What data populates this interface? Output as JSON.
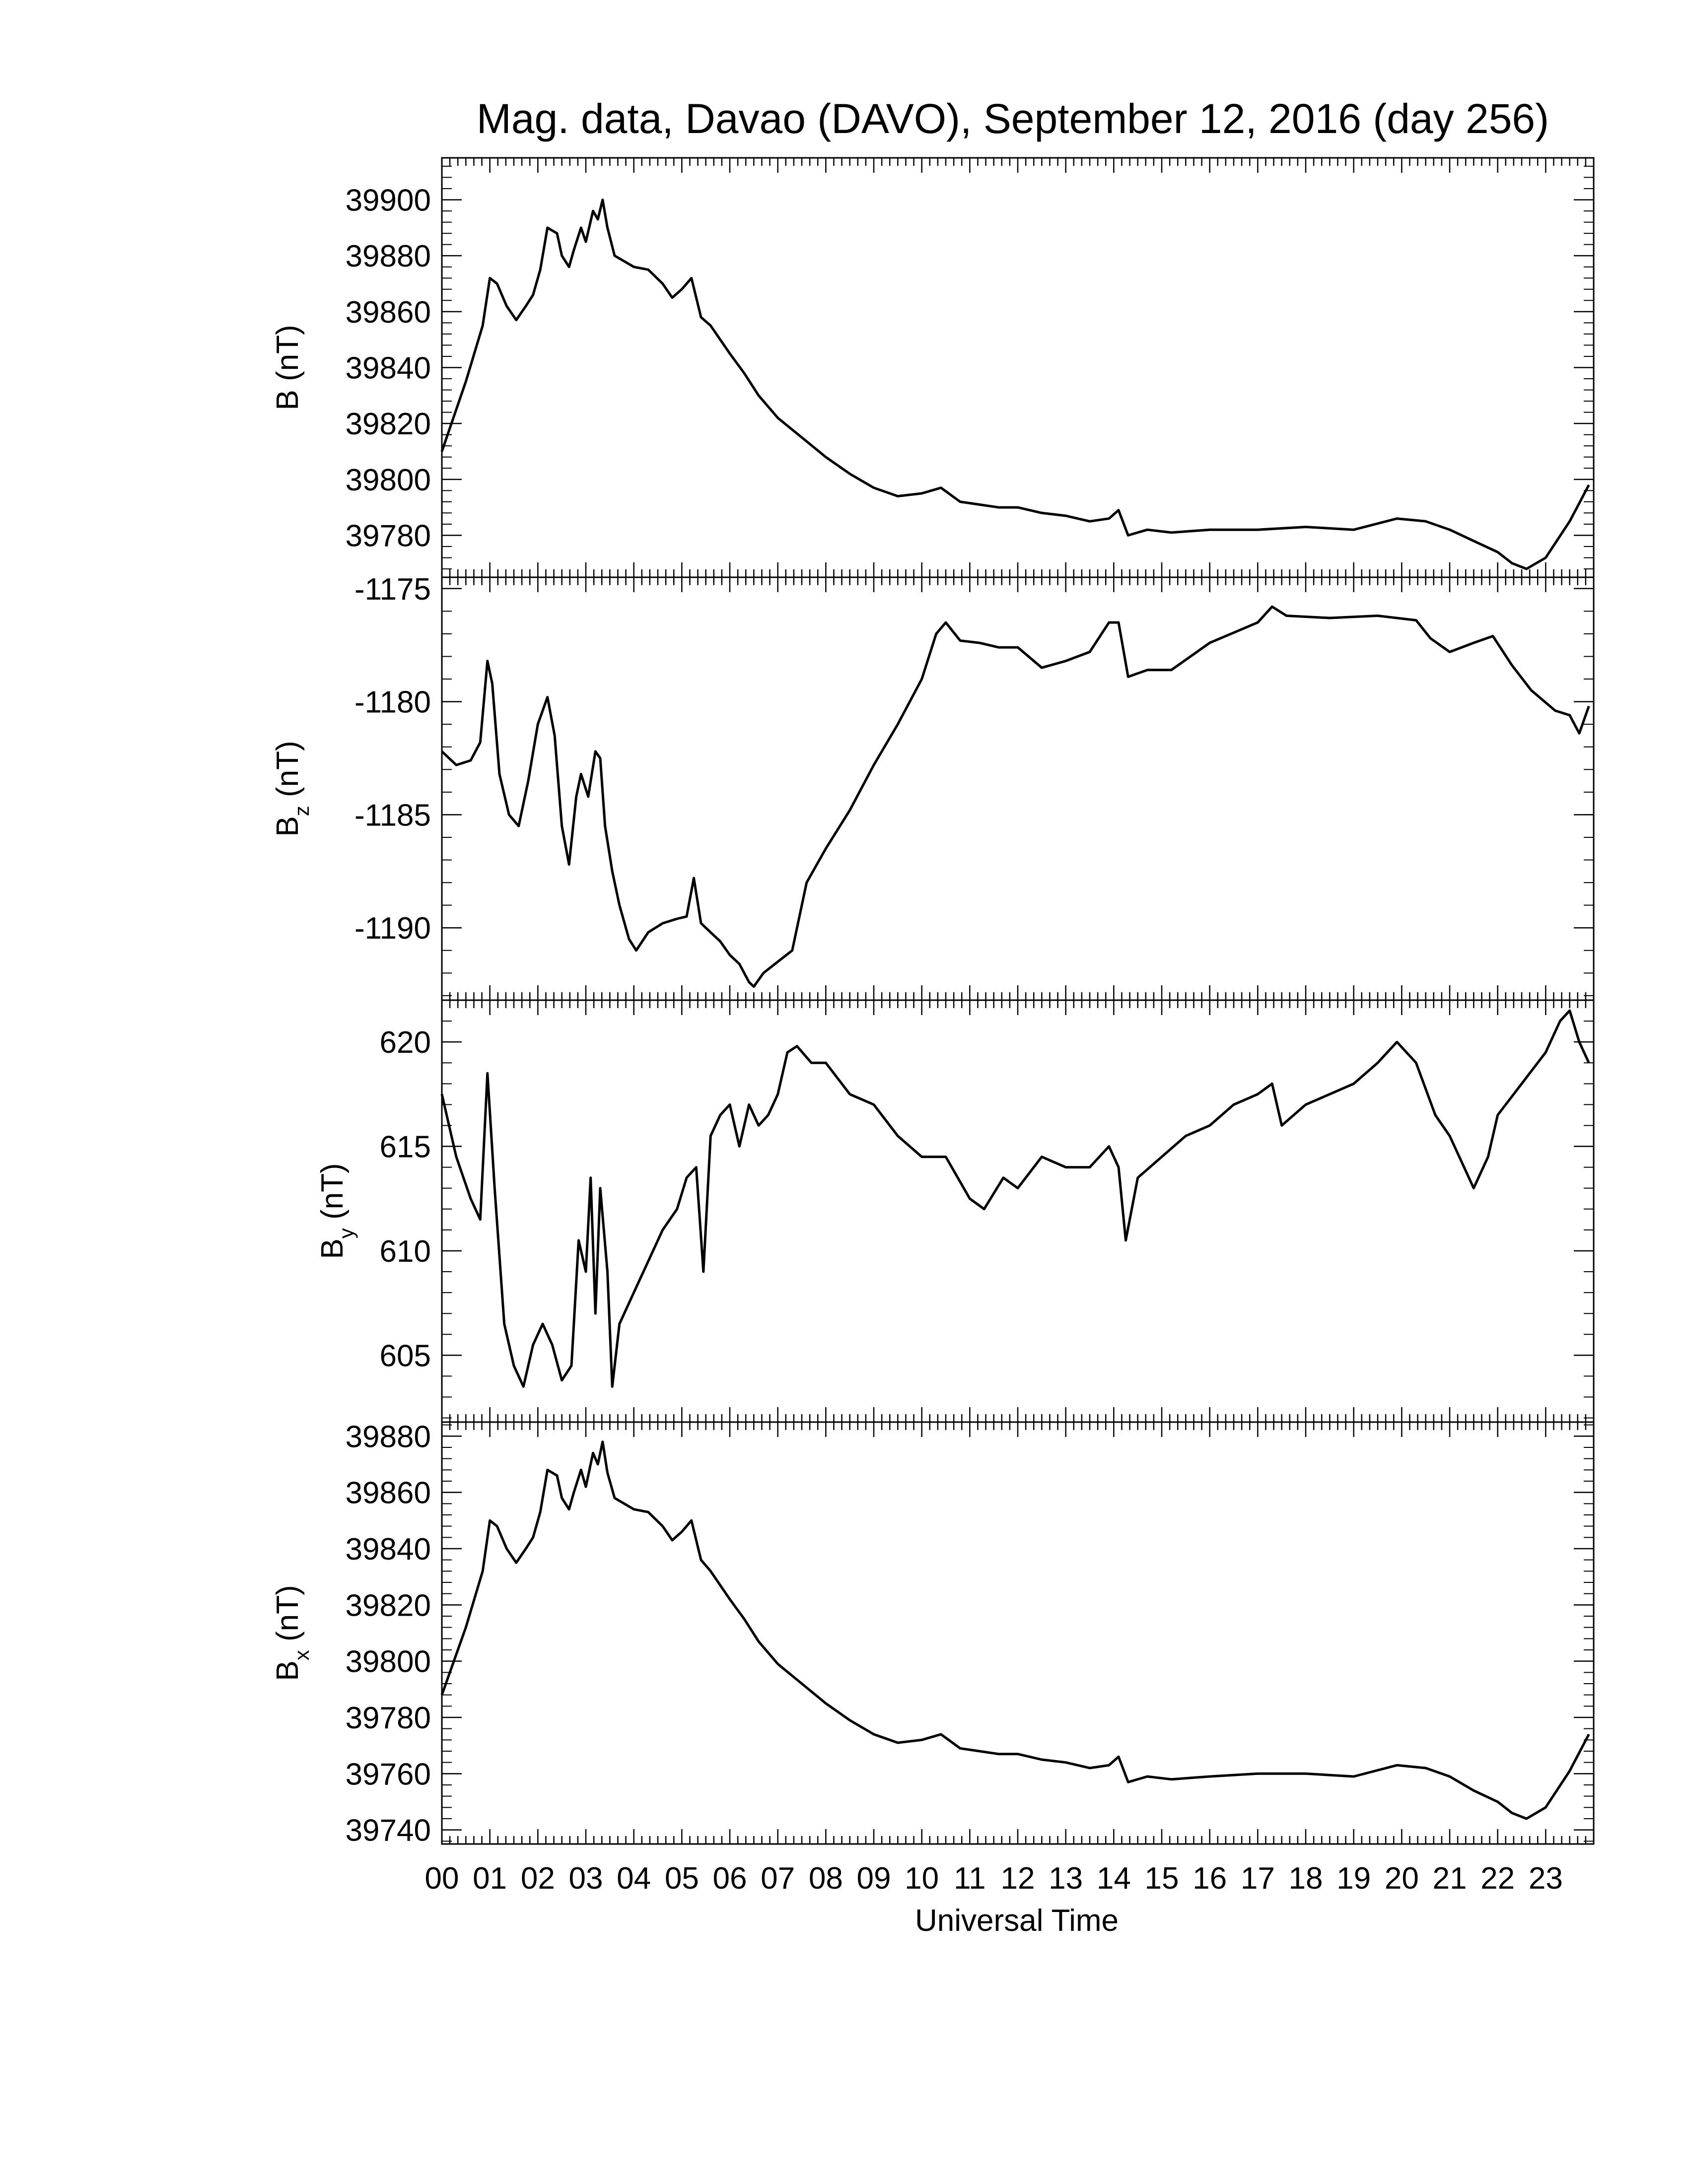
{
  "title": "Mag. data, Davao (DAVO), September 12, 2016 (day 256)",
  "xlabel": "Universal Time",
  "chart_data": [
    {
      "type": "line",
      "panel": "B",
      "ylabel": "B (nT)",
      "ylabel_main": "B",
      "ylabel_sub": "",
      "ylabel_unit": " (nT)",
      "ylim": [
        39765,
        39915
      ],
      "yticks": [
        39780,
        39800,
        39820,
        39840,
        39860,
        39880,
        39900
      ],
      "yticklabels": [
        "39780",
        "39800",
        "39820",
        "39840",
        "39860",
        "39880",
        "39900"
      ],
      "x": [
        0.0,
        0.5,
        0.85,
        1.0,
        1.15,
        1.35,
        1.55,
        1.75,
        1.9,
        2.05,
        2.2,
        2.4,
        2.5,
        2.65,
        2.75,
        2.9,
        3.0,
        3.15,
        3.25,
        3.35,
        3.45,
        3.6,
        3.8,
        4.0,
        4.3,
        4.6,
        4.8,
        5.0,
        5.2,
        5.4,
        5.6,
        5.8,
        6.0,
        6.3,
        6.6,
        7.0,
        7.5,
        8.0,
        8.5,
        9.0,
        9.5,
        10.0,
        10.4,
        10.8,
        11.2,
        11.6,
        12.0,
        12.5,
        13.0,
        13.5,
        13.9,
        14.1,
        14.3,
        14.7,
        15.2,
        16.0,
        17.0,
        18.0,
        19.0,
        19.9,
        20.5,
        21.0,
        21.5,
        22.0,
        22.3,
        22.6,
        23.0,
        23.5,
        23.9
      ],
      "y": [
        39810,
        39835,
        39855,
        39872,
        39870,
        39862,
        39857,
        39862,
        39866,
        39875,
        39890,
        39888,
        39880,
        39876,
        39882,
        39890,
        39885,
        39896,
        39893,
        39900,
        39890,
        39880,
        39878,
        39876,
        39875,
        39870,
        39865,
        39868,
        39872,
        39858,
        39855,
        39850,
        39845,
        39838,
        39830,
        39822,
        39815,
        39808,
        39802,
        39797,
        39794,
        39795,
        39797,
        39792,
        39791,
        39790,
        39790,
        39788,
        39787,
        39785,
        39786,
        39789,
        39780,
        39782,
        39781,
        39782,
        39782,
        39783,
        39782,
        39786,
        39785,
        39782,
        39778,
        39774,
        39770,
        39768,
        39772,
        39785,
        39798
      ]
    },
    {
      "type": "line",
      "panel": "Bz",
      "ylabel": "Bz (nT)",
      "ylabel_main": "B",
      "ylabel_sub": "z",
      "ylabel_unit": " (nT)",
      "ylim": [
        -1193.2,
        -1174.5
      ],
      "yticks": [
        -1190,
        -1185,
        -1180,
        -1175
      ],
      "yticklabels": [
        "-1190",
        "-1185",
        "-1180",
        "-1175"
      ],
      "x": [
        0.0,
        0.3,
        0.6,
        0.8,
        0.95,
        1.05,
        1.2,
        1.4,
        1.6,
        1.8,
        2.0,
        2.2,
        2.35,
        2.5,
        2.65,
        2.8,
        2.9,
        3.05,
        3.2,
        3.3,
        3.4,
        3.55,
        3.7,
        3.9,
        4.05,
        4.3,
        4.6,
        4.9,
        5.1,
        5.25,
        5.4,
        5.6,
        5.8,
        6.0,
        6.2,
        6.4,
        6.5,
        6.7,
        7.0,
        7.3,
        7.6,
        8.0,
        8.5,
        9.0,
        9.5,
        10.0,
        10.3,
        10.5,
        10.8,
        11.2,
        11.6,
        12.0,
        12.5,
        13.0,
        13.5,
        13.9,
        14.1,
        14.3,
        14.7,
        15.2,
        16.0,
        17.0,
        17.3,
        17.6,
        18.5,
        19.5,
        20.3,
        20.6,
        21.0,
        21.5,
        21.9,
        22.3,
        22.7,
        23.2,
        23.5,
        23.7,
        23.9
      ],
      "y": [
        -1182.2,
        -1182.8,
        -1182.6,
        -1181.8,
        -1178.2,
        -1179.2,
        -1183.2,
        -1185.0,
        -1185.5,
        -1183.5,
        -1181.0,
        -1179.8,
        -1181.5,
        -1185.5,
        -1187.2,
        -1184.2,
        -1183.2,
        -1184.2,
        -1182.2,
        -1182.5,
        -1185.5,
        -1187.5,
        -1189.0,
        -1190.5,
        -1191.0,
        -1190.2,
        -1189.8,
        -1189.6,
        -1189.5,
        -1187.8,
        -1189.8,
        -1190.2,
        -1190.6,
        -1191.2,
        -1191.6,
        -1192.4,
        -1192.6,
        -1192.0,
        -1191.5,
        -1191.0,
        -1188.0,
        -1186.5,
        -1184.8,
        -1182.8,
        -1181.0,
        -1179.0,
        -1177.0,
        -1176.5,
        -1177.3,
        -1177.4,
        -1177.6,
        -1177.6,
        -1178.5,
        -1178.2,
        -1177.8,
        -1176.5,
        -1176.5,
        -1178.9,
        -1178.6,
        -1178.6,
        -1177.4,
        -1176.5,
        -1175.8,
        -1176.2,
        -1176.3,
        -1176.2,
        -1176.4,
        -1177.2,
        -1177.8,
        -1177.4,
        -1177.1,
        -1178.4,
        -1179.5,
        -1180.4,
        -1180.6,
        -1181.4,
        -1180.2
      ]
    },
    {
      "type": "line",
      "panel": "By",
      "ylabel": "By (nT)",
      "ylabel_main": "B",
      "ylabel_sub": "y",
      "ylabel_unit": " (nT)",
      "ylim": [
        601.8,
        622.0
      ],
      "yticks": [
        605,
        610,
        615,
        620
      ],
      "yticklabels": [
        "605",
        "610",
        "615",
        "620"
      ],
      "x": [
        0.0,
        0.3,
        0.6,
        0.8,
        0.95,
        1.1,
        1.3,
        1.5,
        1.7,
        1.9,
        2.1,
        2.3,
        2.5,
        2.7,
        2.85,
        3.0,
        3.1,
        3.2,
        3.3,
        3.45,
        3.55,
        3.7,
        3.9,
        4.1,
        4.3,
        4.6,
        4.9,
        5.1,
        5.3,
        5.45,
        5.6,
        5.8,
        6.0,
        6.2,
        6.4,
        6.6,
        6.8,
        7.0,
        7.2,
        7.4,
        7.7,
        8.0,
        8.5,
        9.0,
        9.5,
        10.0,
        10.5,
        11.0,
        11.3,
        11.7,
        12.0,
        12.5,
        13.0,
        13.5,
        13.9,
        14.1,
        14.25,
        14.5,
        15.0,
        15.5,
        16.0,
        16.5,
        17.0,
        17.3,
        17.5,
        18.0,
        18.5,
        19.0,
        19.5,
        19.9,
        20.3,
        20.7,
        21.0,
        21.3,
        21.5,
        21.8,
        22.0,
        22.5,
        23.0,
        23.3,
        23.5,
        23.7,
        23.9
      ],
      "y": [
        617.5,
        614.5,
        612.5,
        611.5,
        618.5,
        613.0,
        606.5,
        604.5,
        603.5,
        605.5,
        606.5,
        605.5,
        603.8,
        604.5,
        610.5,
        609.0,
        613.5,
        607.0,
        613.0,
        609.0,
        603.5,
        606.5,
        607.5,
        608.5,
        609.5,
        611.0,
        612.0,
        613.5,
        614.0,
        609.0,
        615.5,
        616.5,
        617.0,
        615.0,
        617.0,
        616.0,
        616.5,
        617.5,
        619.5,
        619.8,
        619.0,
        619.0,
        617.5,
        617.0,
        615.5,
        614.5,
        614.5,
        612.5,
        612.0,
        613.5,
        613.0,
        614.5,
        614.0,
        614.0,
        615.0,
        614.0,
        610.5,
        613.5,
        614.5,
        615.5,
        616.0,
        617.0,
        617.5,
        618.0,
        616.0,
        617.0,
        617.5,
        618.0,
        619.0,
        620.0,
        619.0,
        616.5,
        615.5,
        614.0,
        613.0,
        614.5,
        616.5,
        618.0,
        619.5,
        621.0,
        621.5,
        620.0,
        619.0
      ]
    },
    {
      "type": "line",
      "panel": "Bx",
      "ylabel": "Bx (nT)",
      "ylabel_main": "B",
      "ylabel_sub": "x",
      "ylabel_unit": " (nT)",
      "ylim": [
        39735,
        39885
      ],
      "yticks": [
        39740,
        39760,
        39780,
        39800,
        39820,
        39840,
        39860,
        39880
      ],
      "yticklabels": [
        "39740",
        "39760",
        "39780",
        "39800",
        "39820",
        "39840",
        "39860",
        "39880"
      ],
      "x": [
        0.0,
        0.5,
        0.85,
        1.0,
        1.15,
        1.35,
        1.55,
        1.75,
        1.9,
        2.05,
        2.2,
        2.4,
        2.5,
        2.65,
        2.75,
        2.9,
        3.0,
        3.15,
        3.25,
        3.35,
        3.45,
        3.6,
        3.8,
        4.0,
        4.3,
        4.6,
        4.8,
        5.0,
        5.2,
        5.4,
        5.6,
        5.8,
        6.0,
        6.3,
        6.6,
        7.0,
        7.5,
        8.0,
        8.5,
        9.0,
        9.5,
        10.0,
        10.4,
        10.8,
        11.2,
        11.6,
        12.0,
        12.5,
        13.0,
        13.5,
        13.9,
        14.1,
        14.3,
        14.7,
        15.2,
        16.0,
        17.0,
        18.0,
        19.0,
        19.9,
        20.5,
        21.0,
        21.5,
        22.0,
        22.3,
        22.6,
        23.0,
        23.5,
        23.9
      ],
      "y": [
        39788,
        39812,
        39832,
        39850,
        39848,
        39840,
        39835,
        39840,
        39844,
        39853,
        39868,
        39866,
        39858,
        39854,
        39860,
        39868,
        39862,
        39874,
        39870,
        39878,
        39867,
        39858,
        39856,
        39854,
        39853,
        39848,
        39843,
        39846,
        39850,
        39836,
        39832,
        39827,
        39822,
        39815,
        39807,
        39799,
        39792,
        39785,
        39779,
        39774,
        39771,
        39772,
        39774,
        39769,
        39768,
        39767,
        39767,
        39765,
        39764,
        39762,
        39763,
        39766,
        39757,
        39759,
        39758,
        39759,
        39760,
        39760,
        39759,
        39763,
        39762,
        39759,
        39754,
        39750,
        39746,
        39744,
        39748,
        39761,
        39774
      ]
    }
  ],
  "xticks": [
    0,
    1,
    2,
    3,
    4,
    5,
    6,
    7,
    8,
    9,
    10,
    11,
    12,
    13,
    14,
    15,
    16,
    17,
    18,
    19,
    20,
    21,
    22,
    23
  ],
  "xticklabels": [
    "00",
    "01",
    "02",
    "03",
    "04",
    "05",
    "06",
    "07",
    "08",
    "09",
    "10",
    "11",
    "12",
    "13",
    "14",
    "15",
    "16",
    "17",
    "18",
    "19",
    "20",
    "21",
    "22",
    "23"
  ],
  "xlim": [
    0,
    24
  ]
}
